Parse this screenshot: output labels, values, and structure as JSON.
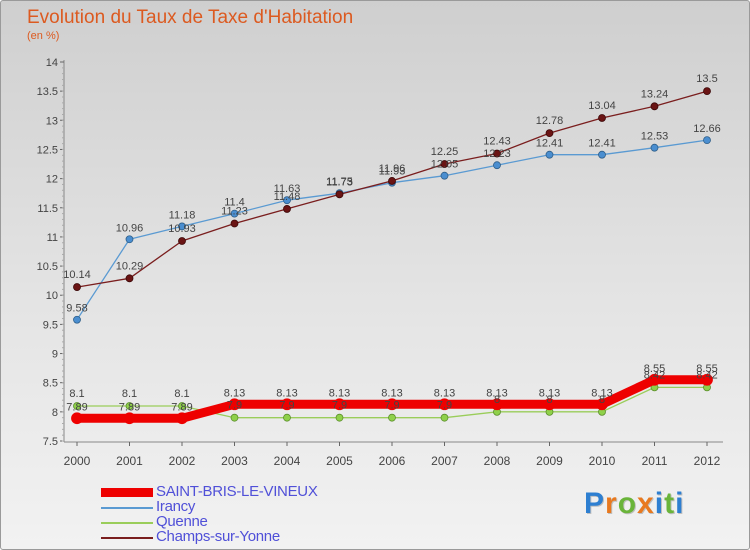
{
  "title": "Evolution du Taux de Taxe d'Habitation",
  "subtitle": "(en %)",
  "logo": "Proxiti",
  "chart_data": {
    "type": "line",
    "title": "Evolution du Taux de Taxe d'Habitation",
    "subtitle": "(en %)",
    "xlabel": "",
    "ylabel": "",
    "x": [
      "2000",
      "2001",
      "2002",
      "2003",
      "2004",
      "2005",
      "2006",
      "2007",
      "2008",
      "2009",
      "2010",
      "2011",
      "2012"
    ],
    "ylim": [
      7.5,
      14
    ],
    "yticks": [
      "7.5",
      "8",
      "8.5",
      "9",
      "9.5",
      "10",
      "10.5",
      "11",
      "11.5",
      "12",
      "12.5",
      "13",
      "13.5",
      "14"
    ],
    "grid": false,
    "legend": "bottom-left",
    "series": [
      {
        "name": "SAINT-BRIS-LE-VINEUX",
        "color": "#ee0000",
        "values": [
          7.89,
          7.89,
          7.89,
          8.13,
          8.13,
          8.13,
          8.13,
          8.13,
          8.13,
          8.13,
          8.13,
          8.55,
          8.55
        ],
        "labels": [
          "7.89",
          "7.89",
          "7.89",
          "8.13",
          "8.13",
          "8.13",
          "8.13",
          "8.13",
          "8.13",
          "8.13",
          "8.13",
          "8.55",
          "8.55"
        ]
      },
      {
        "name": "Irancy",
        "color": "#5a9ad2",
        "values": [
          9.58,
          10.96,
          11.18,
          11.4,
          11.63,
          11.75,
          11.93,
          12.05,
          12.23,
          12.41,
          12.41,
          12.53,
          12.66
        ],
        "labels": [
          "9.58",
          "10.96",
          "11.18",
          "11.4",
          "11.63",
          "11.75",
          "11.93",
          "12.05",
          "12.23",
          "12.41",
          "12.41",
          "12.53",
          "12.66"
        ]
      },
      {
        "name": "Quenne",
        "color": "#9acd5a",
        "values": [
          8.1,
          8.1,
          8.1,
          7.9,
          7.9,
          7.9,
          7.9,
          7.9,
          8.0,
          8.0,
          8.0,
          8.42,
          8.42
        ],
        "labels": [
          "8.1",
          "8.1",
          "8.1",
          "7.9",
          "7.9",
          "7.9",
          "7.9",
          "7.9",
          "8",
          "8",
          "8",
          "8.42",
          "8.42"
        ]
      },
      {
        "name": "Champs-sur-Yonne",
        "color": "#7a1e1e",
        "values": [
          10.14,
          10.29,
          10.93,
          11.23,
          11.48,
          11.73,
          11.96,
          12.25,
          12.43,
          12.78,
          13.04,
          13.24,
          13.5
        ],
        "labels": [
          "10.14",
          "10.29",
          "10.93",
          "11.23",
          "11.48",
          "11.73",
          "11.96",
          "12.25",
          "12.43",
          "12.78",
          "13.04",
          "13.24",
          "13.5"
        ]
      }
    ]
  }
}
